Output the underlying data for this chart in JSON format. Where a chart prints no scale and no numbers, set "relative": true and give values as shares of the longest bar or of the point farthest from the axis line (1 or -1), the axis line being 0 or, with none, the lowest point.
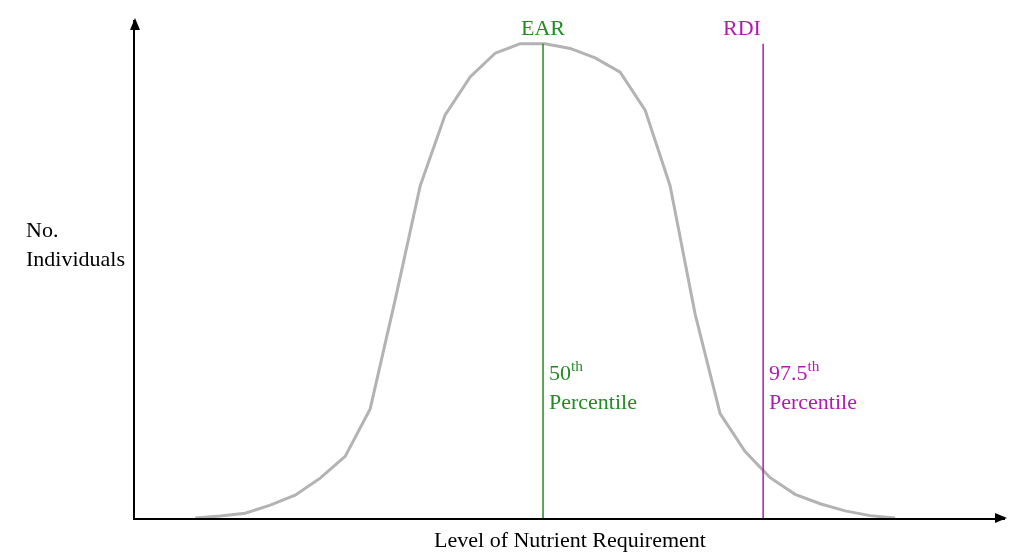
{
  "chart_data": {
    "type": "line",
    "relative": true,
    "xlabel": "Level of Nutrient Requirement",
    "ylabel": "No.\nIndividuals",
    "categories": [
      null,
      null,
      null,
      null,
      null,
      null,
      null,
      null,
      null,
      null,
      null,
      null,
      null,
      null,
      null,
      null,
      null,
      null,
      null,
      null,
      null,
      null,
      null,
      null,
      null,
      null,
      null,
      null,
      null
    ],
    "series": [
      {
        "color": "#b3b3b3",
        "values": [
          0,
          0.004,
          0.01,
          0.027,
          0.048,
          0.084,
          0.13,
          0.23,
          0.46,
          0.7,
          0.85,
          0.93,
          0.98,
          1,
          1,
          0.99,
          0.97,
          0.94,
          0.86,
          0.7,
          0.43,
          0.22,
          0.14,
          0.085,
          0.05,
          0.03,
          0.015,
          0.005,
          0
        ]
      }
    ],
    "annotations": [
      "EAR",
      "50$^{th}$\nPercentile",
      "RDI",
      "97.5$^{th}$\nPercentile"
    ],
    "grid": false,
    "marker": "none",
    "line_style": "solid"
  }
}
